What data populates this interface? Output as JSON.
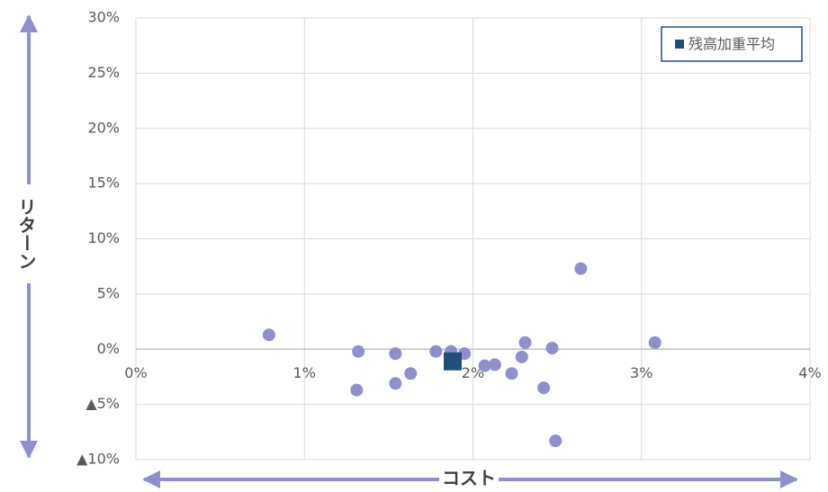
{
  "chart_data": {
    "type": "scatter",
    "x_label": "コスト",
    "y_label": "リターン",
    "xlim": [
      0,
      4
    ],
    "ylim": [
      -10,
      30
    ],
    "xticks": [
      {
        "value": 0,
        "label": "0%"
      },
      {
        "value": 1,
        "label": "1%"
      },
      {
        "value": 2,
        "label": "2%"
      },
      {
        "value": 3,
        "label": "3%"
      },
      {
        "value": 4,
        "label": "4%"
      }
    ],
    "yticks": [
      {
        "value": -10,
        "label": "▲10%"
      },
      {
        "value": -5,
        "label": "▲5%"
      },
      {
        "value": 0,
        "label": "0%"
      },
      {
        "value": 5,
        "label": "5%"
      },
      {
        "value": 10,
        "label": "10%"
      },
      {
        "value": 15,
        "label": "15%"
      },
      {
        "value": 20,
        "label": "20%"
      },
      {
        "value": 25,
        "label": "25%"
      },
      {
        "value": 30,
        "label": "30%"
      }
    ],
    "grid": true,
    "legend": "top-right",
    "series": [
      {
        "color": "#8e8fcc",
        "marker": "circle",
        "x": [
          0.79,
          1.32,
          1.31,
          1.54,
          1.54,
          1.63,
          1.78,
          1.87,
          1.95,
          2.07,
          2.13,
          2.23,
          2.29,
          2.31,
          2.42,
          2.47,
          2.49,
          2.64,
          3.08
        ],
        "values": [
          1.3,
          -0.2,
          -3.7,
          -0.4,
          -3.1,
          -2.2,
          -0.2,
          -0.2,
          -0.4,
          -1.5,
          -1.4,
          -2.2,
          -0.7,
          0.6,
          -3.5,
          0.1,
          -8.3,
          7.3,
          0.6
        ]
      },
      {
        "name": "残高加重平均",
        "color": "#1f4e79",
        "marker": "square",
        "x": [
          1.88
        ],
        "values": [
          -1.1
        ]
      }
    ]
  }
}
